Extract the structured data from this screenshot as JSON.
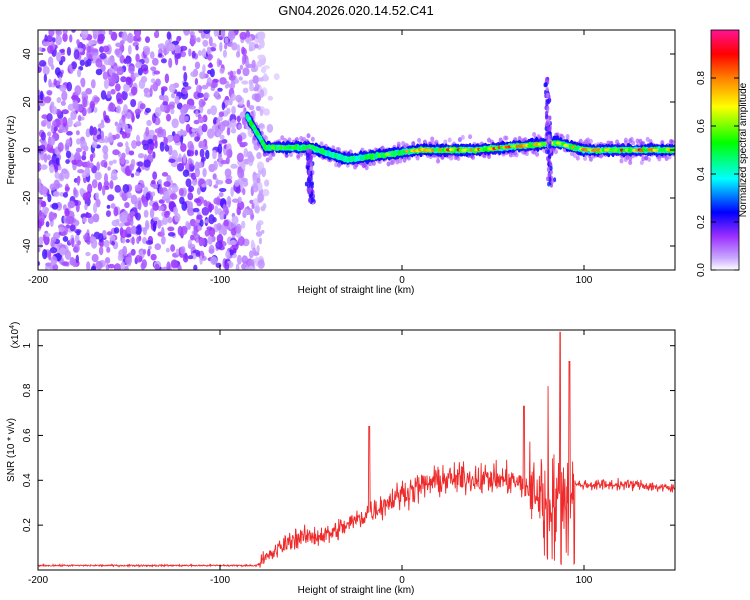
{
  "title": "GN04.2026.020.14.52.C41",
  "chart_data": [
    {
      "type": "heatmap",
      "name": "spectrogram",
      "xlabel": "Height of straight line (km)",
      "ylabel": "Frequency (Hz)",
      "xlim": [
        -200,
        150
      ],
      "ylim": [
        -50,
        50
      ],
      "xticks": [
        -200,
        -100,
        0,
        100
      ],
      "yticks": [
        -40,
        -20,
        0,
        20,
        40
      ],
      "colorbar": {
        "label": "Normalized spectral amplitude",
        "range": [
          0,
          1
        ],
        "ticks": [
          0.0,
          0.2,
          0.4,
          0.6,
          0.8
        ],
        "colormap": [
          "#ffffff",
          "#9b30ff",
          "#0000ff",
          "#00ffff",
          "#00ff00",
          "#ffff00",
          "#ff8000",
          "#ff0000",
          "#ff1493"
        ]
      },
      "features": {
        "noise_region_x": [
          -200,
          -75
        ],
        "ridge": [
          {
            "x": -85,
            "freq": 14,
            "amp": 0.5
          },
          {
            "x": -75,
            "freq": 1,
            "amp": 0.6
          },
          {
            "x": -50,
            "freq": 1,
            "amp": 0.5
          },
          {
            "x": -30,
            "freq": -4,
            "amp": 0.45
          },
          {
            "x": -10,
            "freq": -2,
            "amp": 0.6
          },
          {
            "x": 10,
            "freq": 0,
            "amp": 0.8
          },
          {
            "x": 40,
            "freq": 0,
            "amp": 0.9
          },
          {
            "x": 70,
            "freq": 2,
            "amp": 0.8
          },
          {
            "x": 85,
            "freq": 3,
            "amp": 0.7
          },
          {
            "x": 100,
            "freq": 0,
            "amp": 0.85
          },
          {
            "x": 130,
            "freq": 0,
            "amp": 0.9
          },
          {
            "x": 150,
            "freq": 0,
            "amp": 0.85
          }
        ],
        "bursts": [
          {
            "x": 82,
            "freq_range": [
              -15,
              30
            ]
          },
          {
            "x": -50,
            "freq_range": [
              -22,
              0
            ]
          }
        ]
      }
    },
    {
      "type": "line",
      "name": "snr",
      "xlabel": "Height of straight line (km)",
      "ylabel": "SNR (10 * v/v)",
      "yexponent_label": "(x10",
      "yexponent_power": "4",
      "yexponent_close": ")",
      "xlim": [
        -200,
        150
      ],
      "ylim": [
        0,
        1.07
      ],
      "xticks": [
        -200,
        -100,
        0,
        100
      ],
      "yticks": [
        0.2,
        0.4,
        0.6,
        0.8,
        1.0
      ],
      "color": "#ee2a2a",
      "envelope": [
        {
          "x": -200,
          "y": 0.02
        },
        {
          "x": -80,
          "y": 0.02
        },
        {
          "x": -70,
          "y": 0.08
        },
        {
          "x": -60,
          "y": 0.14
        },
        {
          "x": -40,
          "y": 0.16
        },
        {
          "x": -30,
          "y": 0.2
        },
        {
          "x": -15,
          "y": 0.27
        },
        {
          "x": 0,
          "y": 0.34
        },
        {
          "x": 20,
          "y": 0.4
        },
        {
          "x": 40,
          "y": 0.41
        },
        {
          "x": 60,
          "y": 0.4
        },
        {
          "x": 70,
          "y": 0.36
        },
        {
          "x": 85,
          "y": 0.32
        },
        {
          "x": 95,
          "y": 0.38
        },
        {
          "x": 110,
          "y": 0.38
        },
        {
          "x": 130,
          "y": 0.38
        },
        {
          "x": 150,
          "y": 0.36
        }
      ],
      "peaks": [
        {
          "x": -18,
          "y": 0.64
        },
        {
          "x": 67,
          "y": 0.73
        },
        {
          "x": 80,
          "y": 0.82
        },
        {
          "x": 87,
          "y": 1.06
        },
        {
          "x": 92,
          "y": 0.93
        }
      ]
    }
  ]
}
